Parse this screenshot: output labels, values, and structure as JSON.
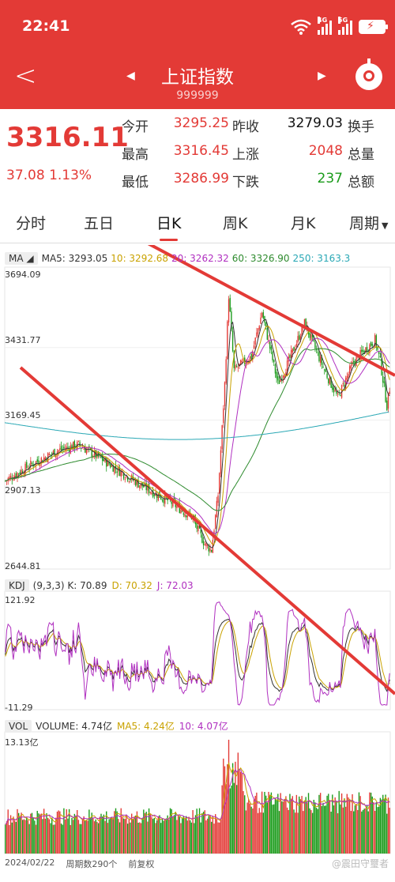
{
  "status": {
    "time": "22:41",
    "sim1": "4G",
    "sim2": "5G"
  },
  "header": {
    "title": "上证指数",
    "code": "999999"
  },
  "quote": {
    "price": "3316.11",
    "change": "37.08 1.13%",
    "rows": [
      [
        {
          "l": "今开",
          "v": "3295.25",
          "c": "#e33a36"
        },
        {
          "l": "昨收",
          "v": "3279.03",
          "c": "#111"
        },
        {
          "l": "换手",
          "v": "",
          "c": "#111"
        }
      ],
      [
        {
          "l": "最高",
          "v": "3316.45",
          "c": "#e33a36"
        },
        {
          "l": "上涨",
          "v": "2048",
          "c": "#e33a36"
        },
        {
          "l": "总量",
          "v": "",
          "c": "#111"
        }
      ],
      [
        {
          "l": "最低",
          "v": "3286.99",
          "c": "#e33a36"
        },
        {
          "l": "下跌",
          "v": "237",
          "c": "#1a9b1a"
        },
        {
          "l": "总额",
          "v": "",
          "c": "#111"
        }
      ]
    ]
  },
  "tabs": [
    {
      "label": "分时",
      "active": false
    },
    {
      "label": "五日",
      "active": false
    },
    {
      "label": "日K",
      "active": true
    },
    {
      "label": "周K",
      "active": false
    },
    {
      "label": "月K",
      "active": false
    },
    {
      "label": "周期",
      "active": false
    }
  ],
  "ma_legend": {
    "selector": "MA",
    "items": [
      {
        "label": "MA5: 3293.05",
        "color": "#333333"
      },
      {
        "label": "10: 3292.68",
        "color": "#c9a200"
      },
      {
        "label": "20: 3262.32",
        "color": "#b030c0"
      },
      {
        "label": "60: 3326.90",
        "color": "#2e8b2e"
      },
      {
        "label": "250: 3163.3",
        "color": "#2aa8b5"
      }
    ]
  },
  "kdj_legend": {
    "selector": "KDJ",
    "items": [
      {
        "label": "(9,3,3) K: 70.89",
        "color": "#333333"
      },
      {
        "label": "D: 70.32",
        "color": "#c9a200"
      },
      {
        "label": "J: 72.03",
        "color": "#b030c0"
      }
    ]
  },
  "vol_legend": {
    "selector": "VOL",
    "items": [
      {
        "label": "VOLUME: 4.74亿",
        "color": "#333333"
      },
      {
        "label": "MA5: 4.24亿",
        "color": "#c9a200"
      },
      {
        "label": "10: 4.07亿",
        "color": "#b030c0"
      }
    ]
  },
  "axis": {
    "price_ticks": [
      "3694.09",
      "3431.77",
      "3169.45",
      "2907.13",
      "2644.81"
    ],
    "kdj_ticks": [
      "121.92",
      "-11.29"
    ],
    "vol_ticks": [
      "13.13亿"
    ]
  },
  "footer": {
    "start_date": "2024/02/22",
    "periods": "周期数290个",
    "adjust": "前复权"
  },
  "watermark": "@震田守璽者",
  "colors": {
    "up": "#e33a36",
    "down": "#1a9b1a",
    "header_bg": "#e33a36"
  },
  "chart_data": {
    "type": "candlestick",
    "price_range": [
      2644.81,
      3694.09
    ],
    "kdj_range": [
      -11.29,
      121.92
    ],
    "vol_max": "13.13亿",
    "trend_keypoints": [
      {
        "i": 0,
        "p": 2950
      },
      {
        "i": 20,
        "p": 3010
      },
      {
        "i": 40,
        "p": 3060
      },
      {
        "i": 55,
        "p": 3080
      },
      {
        "i": 75,
        "p": 3020
      },
      {
        "i": 100,
        "p": 2940
      },
      {
        "i": 125,
        "p": 2870
      },
      {
        "i": 140,
        "p": 2820
      },
      {
        "i": 150,
        "p": 2720
      },
      {
        "i": 155,
        "p": 2700
      },
      {
        "i": 160,
        "p": 2900
      },
      {
        "i": 165,
        "p": 3300
      },
      {
        "i": 168,
        "p": 3620
      },
      {
        "i": 172,
        "p": 3350
      },
      {
        "i": 185,
        "p": 3400
      },
      {
        "i": 193,
        "p": 3560
      },
      {
        "i": 205,
        "p": 3300
      },
      {
        "i": 212,
        "p": 3370
      },
      {
        "i": 225,
        "p": 3520
      },
      {
        "i": 240,
        "p": 3350
      },
      {
        "i": 250,
        "p": 3250
      },
      {
        "i": 262,
        "p": 3380
      },
      {
        "i": 278,
        "p": 3460
      },
      {
        "i": 282,
        "p": 3380
      },
      {
        "i": 287,
        "p": 3220
      },
      {
        "i": 290,
        "p": 3316
      }
    ]
  }
}
